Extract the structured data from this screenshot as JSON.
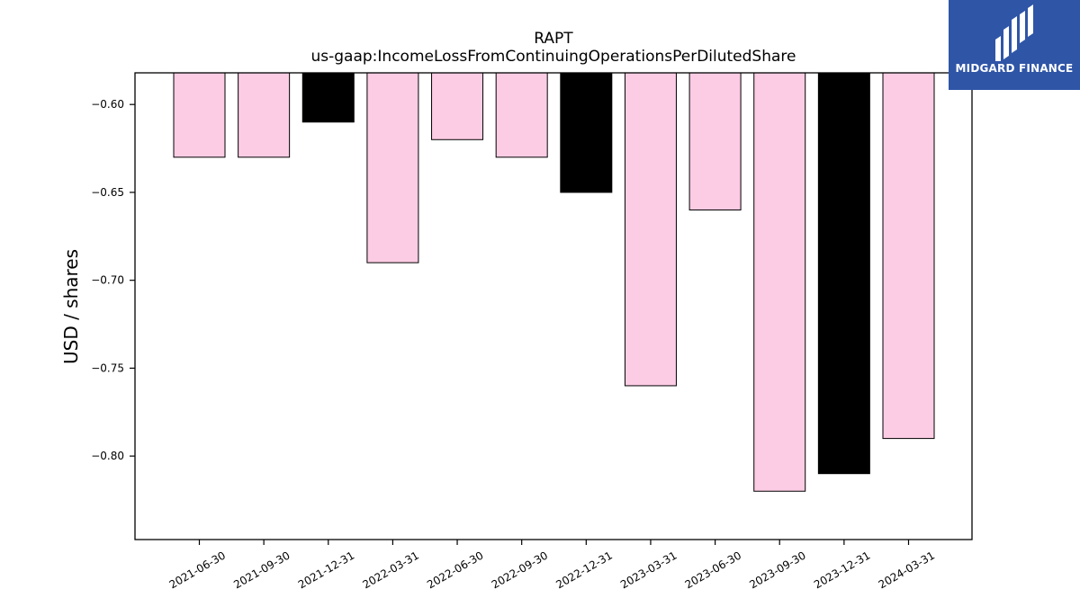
{
  "chart_data": {
    "type": "bar",
    "title": "RAPT",
    "subtitle": "us-gaap:IncomeLossFromContinuingOperationsPerDilutedShare",
    "ylabel": "USD / shares",
    "xlabel": "",
    "categories": [
      "2021-06-30",
      "2021-09-30",
      "2021-12-31",
      "2022-03-31",
      "2022-06-30",
      "2022-09-30",
      "2022-12-31",
      "2023-03-31",
      "2023-06-30",
      "2023-09-30",
      "2023-12-31",
      "2024-03-31"
    ],
    "values": [
      -0.63,
      -0.63,
      -0.61,
      -0.69,
      -0.62,
      -0.63,
      -0.65,
      -0.76,
      -0.66,
      -0.82,
      -0.81,
      -0.79
    ],
    "bar_colors": [
      "#fccce4",
      "#fccce4",
      "#000000",
      "#fccce4",
      "#fccce4",
      "#fccce4",
      "#000000",
      "#fccce4",
      "#fccce4",
      "#fccce4",
      "#000000",
      "#fccce4"
    ],
    "ylim": [
      -0.8475,
      -0.582
    ],
    "yticks": [
      -0.6,
      -0.65,
      -0.7,
      -0.75,
      -0.8
    ],
    "ytick_labels": [
      "−0.60",
      "−0.65",
      "−0.70",
      "−0.75",
      "−0.80"
    ],
    "grid": false,
    "legend": "none"
  },
  "logo": {
    "text": "MIDGARD FINANCE",
    "color": "#2f55a7"
  }
}
